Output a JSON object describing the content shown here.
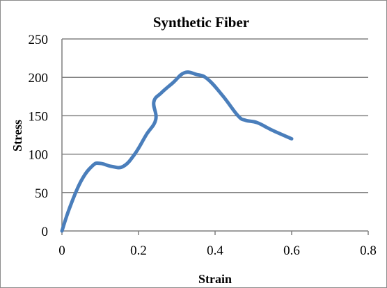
{
  "chart_data": {
    "type": "line",
    "title": "Synthetic Fiber",
    "xlabel": "Strain",
    "ylabel": "Stress",
    "xlim": [
      0,
      0.8
    ],
    "ylim": [
      0,
      250
    ],
    "x_ticks": [
      0,
      0.2,
      0.4,
      0.6,
      0.8
    ],
    "x_tick_labels": [
      "0",
      "0.2",
      "0.4",
      "0.6",
      "0.8"
    ],
    "y_ticks": [
      0,
      50,
      100,
      150,
      200,
      250
    ],
    "y_tick_labels": [
      "0",
      "50",
      "100",
      "150",
      "200",
      "250"
    ],
    "grid": "horizontal",
    "legend": "none",
    "series": [
      {
        "color": "#4a7ebb",
        "x": [
          0,
          0.02,
          0.05,
          0.08,
          0.1,
          0.13,
          0.16,
          0.19,
          0.22,
          0.245,
          0.24,
          0.26,
          0.29,
          0.32,
          0.35,
          0.38,
          0.42,
          0.46,
          0.48,
          0.51,
          0.55,
          0.6
        ],
        "y": [
          0,
          30,
          65,
          85,
          88,
          84,
          84,
          100,
          125,
          145,
          168,
          180,
          193,
          206,
          204,
          198,
          176,
          150,
          144,
          141,
          131,
          120
        ]
      }
    ]
  }
}
